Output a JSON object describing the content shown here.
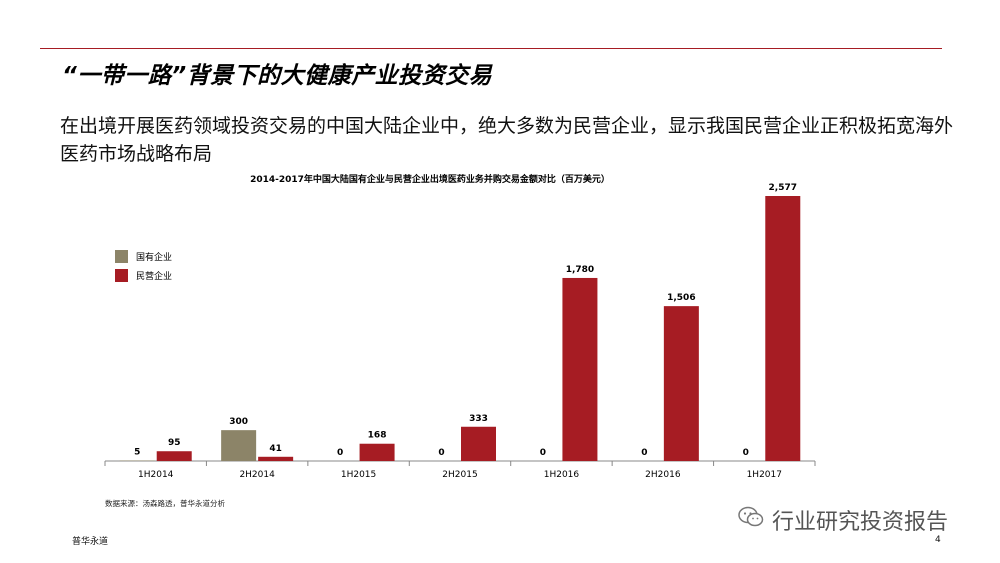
{
  "slide": {
    "title": "“一带一路”背景下的大健康产业投资交易",
    "subtitle": "在出境开展医药领域投资交易的中国大陆企业中，绝大多数为民营企业，显示我国民营企业正积极拓宽海外医药市场战略布局",
    "source": "数据来源：汤森路透，普华永道分析",
    "footer_left": "普华永道",
    "page_number": "4",
    "watermark": "行业研究投资报告",
    "accent_color": "#a61c23"
  },
  "chart_data": {
    "type": "bar",
    "title": "2014-2017年中国大陆国有企业与民营企业出境医药业务并购交易金额对比（百万美元）",
    "categories": [
      "1H2014",
      "2H2014",
      "1H2015",
      "2H2015",
      "1H2016",
      "2H2016",
      "1H2017"
    ],
    "series": [
      {
        "name": "国有企业",
        "color": "#8c8468",
        "values": [
          5,
          300,
          0,
          0,
          0,
          0,
          0
        ],
        "labels": [
          "5",
          "300",
          "0",
          "0",
          "0",
          "0",
          "0"
        ]
      },
      {
        "name": "民营企业",
        "color": "#a61c23",
        "values": [
          95,
          41,
          168,
          333,
          1780,
          1506,
          2577
        ],
        "labels": [
          "95",
          "41",
          "168",
          "333",
          "1,780",
          "1,506",
          "2,577"
        ]
      }
    ],
    "ylim": [
      0,
      2577
    ],
    "grid": false,
    "legend_position": "left"
  }
}
